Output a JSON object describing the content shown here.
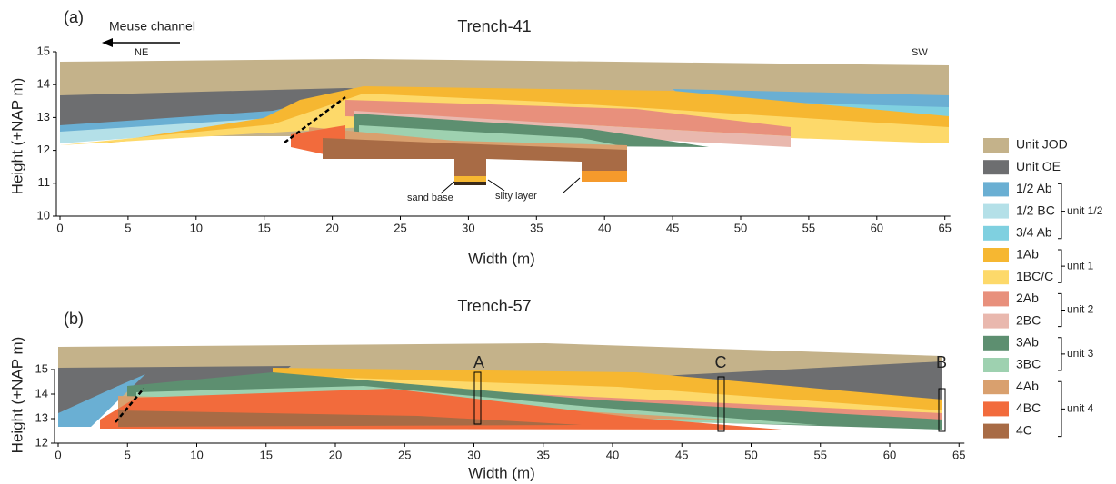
{
  "panels": [
    {
      "label": "(a)",
      "title": "Trench-41",
      "y_label": "Height (+NAP m)",
      "x_label": "Width (m)",
      "annotations": [
        "Meuse channel",
        "NE",
        "SW",
        "sand base",
        "silty layer"
      ],
      "xticks": [
        0,
        5,
        10,
        15,
        20,
        25,
        30,
        35,
        40,
        45,
        50,
        55,
        60,
        65
      ],
      "yticks": [
        10,
        11,
        12,
        13,
        14,
        15
      ]
    },
    {
      "label": "(b)",
      "title": "Trench-57",
      "y_label": "Height (+NAP m)",
      "x_label": "Width (m)",
      "markers": [
        "A",
        "C",
        "B"
      ],
      "xticks": [
        0,
        5,
        10,
        15,
        20,
        25,
        30,
        35,
        40,
        45,
        50,
        55,
        60,
        65
      ],
      "yticks": [
        12,
        13,
        14,
        15
      ]
    }
  ],
  "legend": {
    "entries": [
      {
        "name": "Unit JOD",
        "color": "#c4b28a"
      },
      {
        "name": "Unit OE",
        "color": "#6d6e70"
      },
      {
        "name": "1/2 Ab",
        "color": "#6aafd3"
      },
      {
        "name": "1/2 BC",
        "color": "#b4e0e8"
      },
      {
        "name": "3/4 Ab",
        "color": "#7fd0e0"
      },
      {
        "name": "1Ab",
        "color": "#f6b731"
      },
      {
        "name": "1BC/C",
        "color": "#fdd96a"
      },
      {
        "name": "2Ab",
        "color": "#e8907c"
      },
      {
        "name": "2BC",
        "color": "#e9b8ae"
      },
      {
        "name": "3Ab",
        "color": "#5d8f70"
      },
      {
        "name": "3BC",
        "color": "#9ed1b0"
      },
      {
        "name": "4Ab",
        "color": "#d9a06e"
      },
      {
        "name": "4BC",
        "color": "#f26b3c"
      },
      {
        "name": "4C",
        "color": "#a86b45"
      }
    ],
    "groups": [
      "unit 1/2",
      "unit 1",
      "unit 2",
      "unit 3",
      "unit 4"
    ]
  }
}
